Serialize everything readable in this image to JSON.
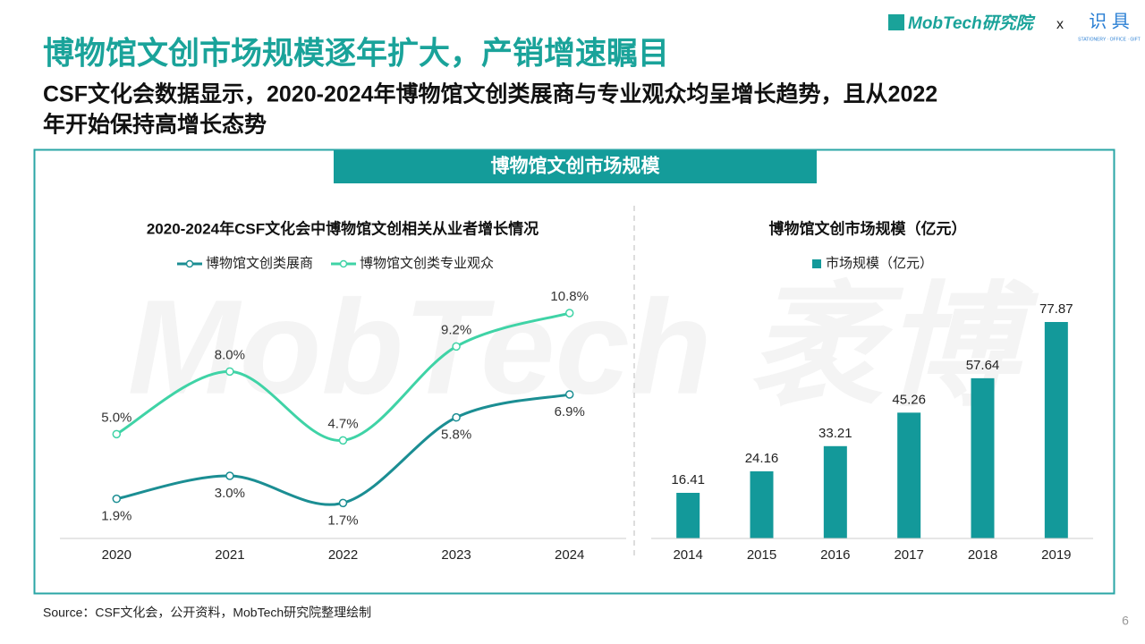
{
  "header": {
    "title": "博物馆文创市场规模逐年扩大，产销增速瞩目",
    "subtitle_lines": [
      "CSF文化会数据显示，2020-2024年博物馆文创类展商与专业观众均呈增长趋势，且从2022",
      "年开始保持高增长态势"
    ],
    "logo": "MobTech研究院",
    "separator": "x",
    "partner_logo": "识 具",
    "partner_tagline": "STATIONERY · OFFICE · GIFT"
  },
  "panel_title": "博物馆文创市场规模",
  "watermark": "MobTech 袤博",
  "chart_data": [
    {
      "type": "line",
      "title": "2020-2024年CSF文化会中博物馆文创相关从业者增长情况",
      "categories": [
        "2020",
        "2021",
        "2022",
        "2023",
        "2024"
      ],
      "series": [
        {
          "name": "博物馆文创类展商",
          "color": "#1b8e93",
          "values": [
            1.9,
            3.0,
            1.7,
            5.8,
            6.9
          ],
          "value_labels": [
            "1.9%",
            "3.0%",
            "1.7%",
            "5.8%",
            "6.9%"
          ]
        },
        {
          "name": "博物馆文创类专业观众",
          "color": "#3fd3a6",
          "values": [
            5.0,
            8.0,
            4.7,
            9.2,
            10.8
          ],
          "value_labels": [
            "5.0%",
            "8.0%",
            "4.7%",
            "9.2%",
            "10.8%"
          ]
        }
      ]
    },
    {
      "type": "bar",
      "title": "博物馆文创市场规模（亿元）",
      "categories": [
        "2014",
        "2015",
        "2016",
        "2017",
        "2018",
        "2019"
      ],
      "series": [
        {
          "name": "市场规模（亿元）",
          "color": "#13999a",
          "values": [
            16.41,
            24.16,
            33.21,
            45.26,
            57.64,
            77.87
          ]
        }
      ]
    }
  ],
  "source": "Source：CSF文化会，公开资料，MobTech研究院整理绘制",
  "page_number": "6"
}
